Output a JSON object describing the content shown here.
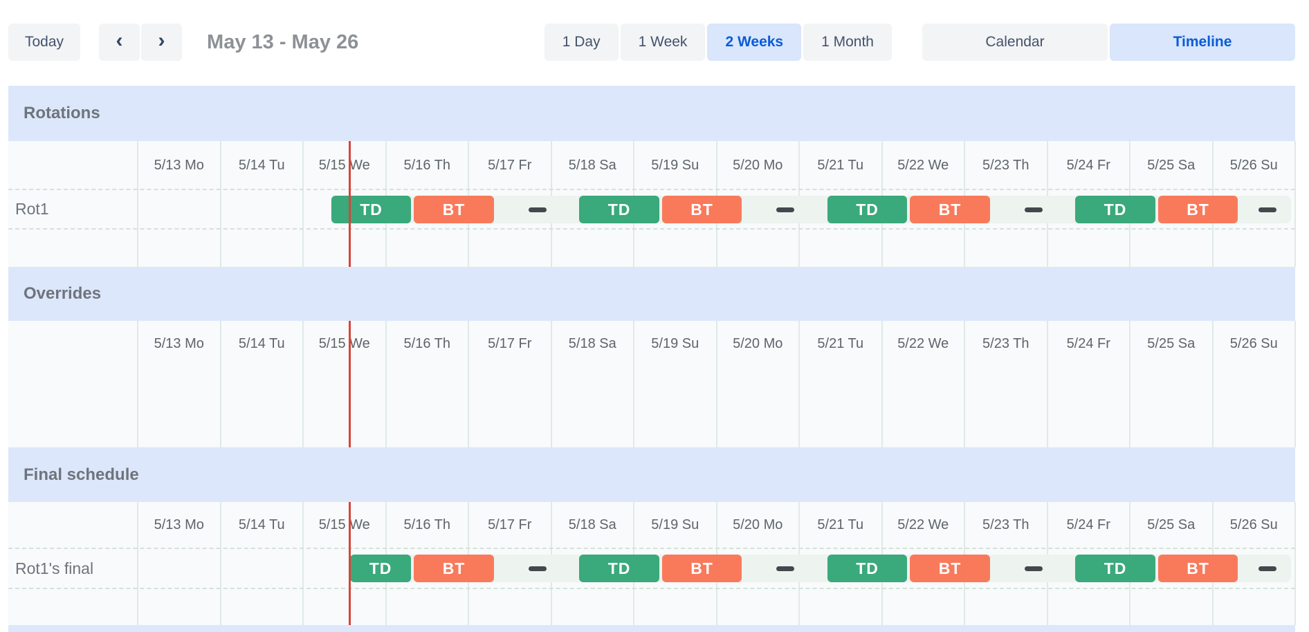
{
  "toolbar": {
    "today": "Today",
    "prev_icon": "‹",
    "next_icon": "›",
    "title": "May 13 - May 26",
    "range_options": [
      {
        "label": "1 Day",
        "selected": false
      },
      {
        "label": "1 Week",
        "selected": false
      },
      {
        "label": "2 Weeks",
        "selected": true
      },
      {
        "label": "1 Month",
        "selected": false
      }
    ],
    "view_options": [
      {
        "label": "Calendar",
        "selected": false
      },
      {
        "label": "Timeline",
        "selected": true
      }
    ]
  },
  "timeline": {
    "day_labels": [
      "5/13 Mo",
      "5/14 Tu",
      "5/15 We",
      "5/16 Th",
      "5/17 Fr",
      "5/18 Sa",
      "5/19 Su",
      "5/20 Mo",
      "5/21 Tu",
      "5/22 We",
      "5/23 Th",
      "5/24 Fr",
      "5/25 Sa",
      "5/26 Su"
    ],
    "now_day": 2.56,
    "shift_colors": {
      "TD": "#3aa97b",
      "BT": "#f97a5b"
    },
    "sections": [
      {
        "id": "rotations",
        "title": "Rotations",
        "rows": [
          {
            "label": "Rot1",
            "period_start": 2.333,
            "period_end": 14,
            "segments": [
              {
                "kind": "shift",
                "label": "TD",
                "start": 2.333,
                "end": 3.333
              },
              {
                "kind": "shift",
                "label": "BT",
                "start": 3.333,
                "end": 4.333
              },
              {
                "kind": "gap",
                "start": 4.333,
                "end": 5.333
              },
              {
                "kind": "shift",
                "label": "TD",
                "start": 5.333,
                "end": 6.333
              },
              {
                "kind": "shift",
                "label": "BT",
                "start": 6.333,
                "end": 7.333
              },
              {
                "kind": "gap",
                "start": 7.333,
                "end": 8.333
              },
              {
                "kind": "shift",
                "label": "TD",
                "start": 8.333,
                "end": 9.333
              },
              {
                "kind": "shift",
                "label": "BT",
                "start": 9.333,
                "end": 10.333
              },
              {
                "kind": "gap",
                "start": 10.333,
                "end": 11.333
              },
              {
                "kind": "shift",
                "label": "TD",
                "start": 11.333,
                "end": 12.333
              },
              {
                "kind": "shift",
                "label": "BT",
                "start": 12.333,
                "end": 13.333
              },
              {
                "kind": "gap",
                "start": 13.333,
                "end": 14
              }
            ]
          }
        ]
      },
      {
        "id": "overrides",
        "title": "Overrides",
        "rows": []
      },
      {
        "id": "final",
        "title": "Final schedule",
        "rows": [
          {
            "label": "Rot1's final",
            "period_start": 2.56,
            "period_end": 14,
            "segments": [
              {
                "kind": "shift",
                "label": "TD",
                "start": 2.56,
                "end": 3.333
              },
              {
                "kind": "shift",
                "label": "BT",
                "start": 3.333,
                "end": 4.333
              },
              {
                "kind": "gap",
                "start": 4.333,
                "end": 5.333
              },
              {
                "kind": "shift",
                "label": "TD",
                "start": 5.333,
                "end": 6.333
              },
              {
                "kind": "shift",
                "label": "BT",
                "start": 6.333,
                "end": 7.333
              },
              {
                "kind": "gap",
                "start": 7.333,
                "end": 8.333
              },
              {
                "kind": "shift",
                "label": "TD",
                "start": 8.333,
                "end": 9.333
              },
              {
                "kind": "shift",
                "label": "BT",
                "start": 9.333,
                "end": 10.333
              },
              {
                "kind": "gap",
                "start": 10.333,
                "end": 11.333
              },
              {
                "kind": "shift",
                "label": "TD",
                "start": 11.333,
                "end": 12.333
              },
              {
                "kind": "shift",
                "label": "BT",
                "start": 12.333,
                "end": 13.333
              },
              {
                "kind": "gap",
                "start": 13.333,
                "end": 14
              }
            ]
          }
        ]
      }
    ]
  },
  "colors": {
    "accent_blue": "#0b5bd7",
    "selected_bg": "#d9e6fb",
    "band_bg": "#dce7fb",
    "now_line": "#d5473b",
    "gap_dash": "#43484d",
    "shift_td": "#3aa97b",
    "shift_bt": "#f97a5b"
  }
}
